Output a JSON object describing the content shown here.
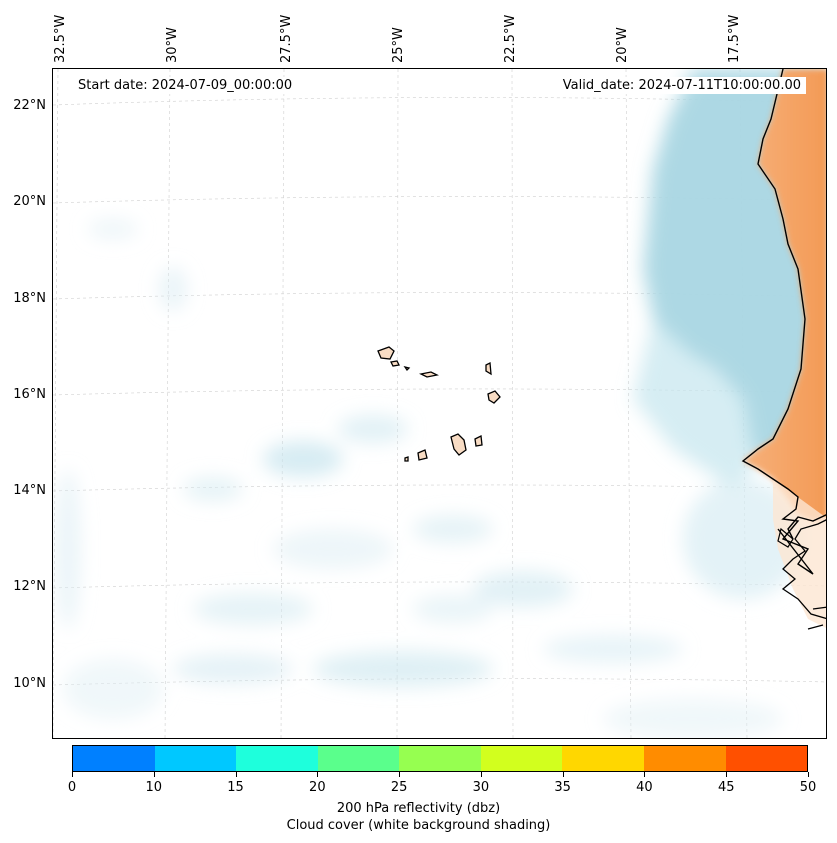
{
  "map": {
    "start_date": "Start date: 2024-07-09_00:00:00",
    "valid_date": "Valid_date: 2024-07-11T10:00:00.00",
    "lon_labels": [
      "32.5°W",
      "30°W",
      "27.5°W",
      "25°W",
      "22.5°W",
      "20°W",
      "17.5°W"
    ],
    "lat_labels": [
      "22°N",
      "20°N",
      "18°N",
      "16°N",
      "14°N",
      "12°N",
      "10°N"
    ],
    "region": "Cabo Verde / West Africa coast",
    "colors": {
      "cloud": "#add8e6",
      "land_warm": "#f4a261",
      "land_light": "#fde4cc",
      "coastline": "#000000",
      "grid": "#cccccc"
    }
  },
  "colorbar": {
    "ticks": [
      "0",
      "10",
      "15",
      "20",
      "25",
      "30",
      "35",
      "40",
      "45",
      "50"
    ],
    "colors": [
      "#0080ff",
      "#00c8ff",
      "#1effdc",
      "#5aff8c",
      "#96ff50",
      "#d2ff1e",
      "#ffd700",
      "#ff8c00",
      "#ff5000"
    ],
    "label_line1": "200 hPa reflectivity (dbz)",
    "label_line2": "Cloud cover (white background shading)"
  }
}
